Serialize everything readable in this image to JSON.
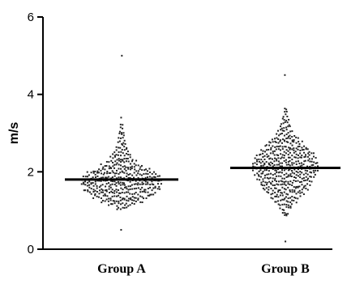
{
  "chart_data": {
    "type": "scatter",
    "subtype": "dot-plot-with-mean",
    "ylabel": "m/s",
    "xlabel": "",
    "ylim": [
      0,
      6
    ],
    "yticks": [
      0,
      2,
      4,
      6
    ],
    "categories": [
      "Group A",
      "Group B"
    ],
    "grid": false,
    "legend": "none",
    "point_color": "#222222",
    "series": [
      {
        "name": "Group A",
        "mean": 1.8,
        "min": 0.5,
        "max": 5.0,
        "bins": [
          [
            0.5,
            1
          ],
          [
            1.05,
            6
          ],
          [
            1.15,
            14
          ],
          [
            1.25,
            22
          ],
          [
            1.35,
            30
          ],
          [
            1.45,
            36
          ],
          [
            1.55,
            40
          ],
          [
            1.65,
            42
          ],
          [
            1.75,
            42
          ],
          [
            1.85,
            40
          ],
          [
            1.95,
            36
          ],
          [
            2.05,
            30
          ],
          [
            2.15,
            22
          ],
          [
            2.25,
            16
          ],
          [
            2.35,
            12
          ],
          [
            2.45,
            10
          ],
          [
            2.55,
            8
          ],
          [
            2.65,
            6
          ],
          [
            2.75,
            5
          ],
          [
            2.85,
            4
          ],
          [
            2.95,
            3
          ],
          [
            3.05,
            3
          ],
          [
            3.15,
            2
          ],
          [
            3.25,
            2
          ],
          [
            3.4,
            1
          ],
          [
            5.0,
            1
          ]
        ]
      },
      {
        "name": "Group B",
        "mean": 2.1,
        "min": 0.2,
        "max": 4.5,
        "bins": [
          [
            0.2,
            1
          ],
          [
            0.85,
            2
          ],
          [
            0.95,
            4
          ],
          [
            1.05,
            6
          ],
          [
            1.15,
            8
          ],
          [
            1.25,
            12
          ],
          [
            1.35,
            16
          ],
          [
            1.45,
            20
          ],
          [
            1.55,
            24
          ],
          [
            1.65,
            26
          ],
          [
            1.75,
            28
          ],
          [
            1.85,
            30
          ],
          [
            1.95,
            32
          ],
          [
            2.05,
            34
          ],
          [
            2.15,
            34
          ],
          [
            2.25,
            34
          ],
          [
            2.35,
            32
          ],
          [
            2.45,
            30
          ],
          [
            2.55,
            26
          ],
          [
            2.65,
            22
          ],
          [
            2.75,
            18
          ],
          [
            2.85,
            14
          ],
          [
            2.95,
            10
          ],
          [
            3.05,
            8
          ],
          [
            3.15,
            6
          ],
          [
            3.25,
            5
          ],
          [
            3.35,
            4
          ],
          [
            3.45,
            3
          ],
          [
            3.55,
            2
          ],
          [
            3.6,
            2
          ],
          [
            4.5,
            1
          ]
        ]
      }
    ]
  }
}
